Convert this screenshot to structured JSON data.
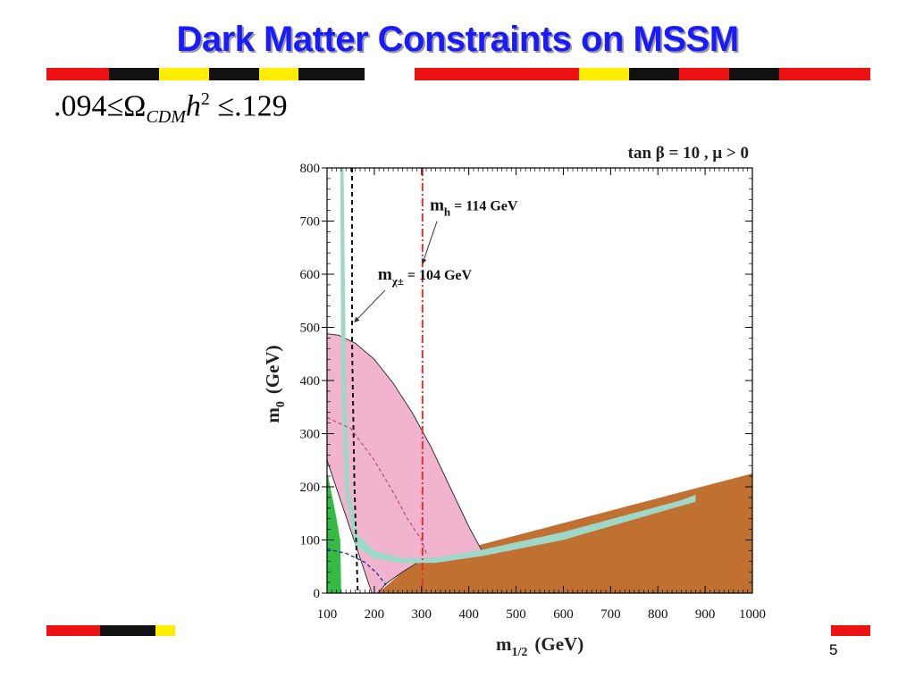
{
  "slide": {
    "title": "Dark Matter Constraints on MSSM",
    "page_number": "5",
    "formula": {
      "lower": ".094",
      "leq": "≤",
      "omega": "Ω",
      "subscript": "CDM",
      "h": "h",
      "power": "2",
      "upper": ".129"
    },
    "colors": {
      "title": "#1a1aff",
      "stripe_red": "#ee1111",
      "stripe_black": "#111111",
      "stripe_yellow": "#ffee00"
    }
  },
  "chart_data": {
    "type": "area",
    "title": "tan β = 10 ,  μ > 0",
    "xlabel_main": "m",
    "xlabel_sub": "1/2",
    "xlabel_unit": "(GeV)",
    "ylabel_main": "m",
    "ylabel_sub": "0",
    "ylabel_unit": "(GeV)",
    "xlim": [
      100,
      1000
    ],
    "ylim": [
      0,
      800
    ],
    "x_ticks": [
      100,
      200,
      300,
      400,
      500,
      600,
      700,
      800,
      900,
      1000
    ],
    "y_ticks": [
      0,
      100,
      200,
      300,
      400,
      500,
      600,
      700,
      800
    ],
    "regions": [
      {
        "kind": "charged-lsp-excluded",
        "color": "#c07030",
        "points": [
          [
            208,
            0
          ],
          [
            1000,
            0
          ],
          [
            1000,
            225
          ],
          [
            300,
            62
          ],
          [
            260,
            40
          ],
          [
            208,
            0
          ]
        ]
      },
      {
        "kind": "g-2-favoured",
        "color": "#f2b3cf",
        "points": [
          [
            100,
            488
          ],
          [
            125,
            485
          ],
          [
            160,
            470
          ],
          [
            200,
            440
          ],
          [
            240,
            395
          ],
          [
            280,
            340
          ],
          [
            320,
            275
          ],
          [
            360,
            200
          ],
          [
            400,
            125
          ],
          [
            430,
            76
          ],
          [
            360,
            64
          ],
          [
            300,
            62
          ],
          [
            260,
            40
          ],
          [
            225,
            18
          ],
          [
            208,
            0
          ],
          [
            195,
            0
          ],
          [
            100,
            250
          ]
        ]
      },
      {
        "kind": "relic-density-band",
        "color": "#9fd8c8",
        "points": [
          [
            128,
            800
          ],
          [
            135,
            800
          ],
          [
            140,
            400
          ],
          [
            148,
            190
          ],
          [
            165,
            110
          ],
          [
            200,
            80
          ],
          [
            260,
            66
          ],
          [
            330,
            67
          ],
          [
            430,
            82
          ],
          [
            600,
            115
          ],
          [
            850,
            175
          ],
          [
            880,
            185
          ],
          [
            880,
            172
          ],
          [
            600,
            100
          ],
          [
            430,
            70
          ],
          [
            330,
            57
          ],
          [
            260,
            56
          ],
          [
            200,
            64
          ],
          [
            160,
            90
          ],
          [
            138,
            190
          ],
          [
            130,
            400
          ]
        ]
      },
      {
        "kind": "b-to-s-gamma-excluded",
        "color": "#33bb44",
        "points": [
          [
            100,
            0
          ],
          [
            130,
            0
          ],
          [
            128,
            100
          ],
          [
            118,
            150
          ],
          [
            100,
            230
          ]
        ]
      }
    ],
    "lines": [
      {
        "label": "m_chi_plus_minus_104",
        "style": "black-dashed",
        "points": [
          [
            153,
            800
          ],
          [
            153,
            470
          ],
          [
            158,
            200
          ],
          [
            165,
            0
          ]
        ]
      },
      {
        "label": "m_h_114",
        "style": "red-dash-dot",
        "points": [
          [
            302,
            800
          ],
          [
            302,
            0
          ]
        ]
      },
      {
        "label": "pink-dashed-contour",
        "style": "pink-dashed",
        "points": [
          [
            100,
            330
          ],
          [
            150,
            310
          ],
          [
            200,
            250
          ],
          [
            240,
            190
          ],
          [
            270,
            140
          ],
          [
            300,
            100
          ],
          [
            310,
            75
          ]
        ]
      },
      {
        "label": "blue-dashed-contour",
        "style": "blue-dashed",
        "points": [
          [
            100,
            83
          ],
          [
            140,
            75
          ],
          [
            180,
            58
          ],
          [
            205,
            38
          ],
          [
            225,
            15
          ]
        ]
      }
    ],
    "annotations": [
      {
        "id": "mh",
        "main": "m",
        "sub": "h",
        "rest": "  = 114 GeV",
        "pos": [
          310,
          720
        ],
        "arrow_to": [
          302,
          620
        ]
      },
      {
        "id": "mchi",
        "main": "m",
        "sub": "χ±",
        "rest": " = 104 GeV",
        "pos": [
          200,
          590
        ],
        "arrow_to": [
          158,
          510
        ]
      }
    ]
  }
}
